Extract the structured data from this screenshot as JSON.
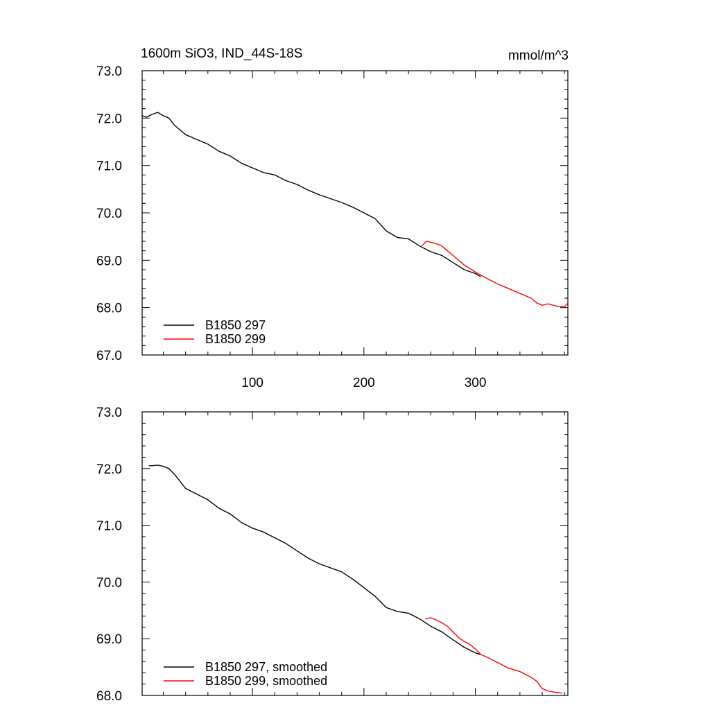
{
  "chart_data": [
    {
      "type": "line",
      "title": "1600m SiO3, IND_44S-18S",
      "units": "mmol/m^3",
      "xlim": [
        1,
        383
      ],
      "ylim": [
        67.0,
        73.0
      ],
      "xticks": [
        100,
        200,
        300
      ],
      "xtick_labels": [
        "100",
        "200",
        "300"
      ],
      "yticks": [
        67.0,
        68.0,
        69.0,
        70.0,
        71.0,
        72.0,
        73.0
      ],
      "ytick_labels": [
        "67.0",
        "68.0",
        "69.0",
        "70.0",
        "71.0",
        "72.0",
        "73.0"
      ],
      "legend_position": "bottom-left",
      "series": [
        {
          "name": "B1850 297",
          "color": "#000000",
          "x": [
            1,
            5,
            10,
            15,
            20,
            25,
            30,
            40,
            50,
            60,
            70,
            80,
            90,
            100,
            110,
            120,
            130,
            140,
            150,
            160,
            170,
            180,
            190,
            200,
            210,
            220,
            230,
            240,
            250,
            260,
            270,
            280,
            290,
            300,
            305
          ],
          "y": [
            72.05,
            72.02,
            72.08,
            72.12,
            72.05,
            72.0,
            71.85,
            71.65,
            71.55,
            71.45,
            71.3,
            71.2,
            71.05,
            70.95,
            70.85,
            70.8,
            70.68,
            70.6,
            70.48,
            70.38,
            70.3,
            70.22,
            70.12,
            70.0,
            69.88,
            69.62,
            69.48,
            69.45,
            69.3,
            69.18,
            69.1,
            68.95,
            68.8,
            68.72,
            68.65
          ]
        },
        {
          "name": "B1850 299",
          "color": "#ff0000",
          "x": [
            252,
            256,
            260,
            265,
            270,
            275,
            280,
            285,
            290,
            300,
            310,
            320,
            330,
            340,
            350,
            355,
            360,
            365,
            370,
            375,
            380,
            383
          ],
          "y": [
            69.3,
            69.4,
            69.38,
            69.35,
            69.3,
            69.2,
            69.1,
            69.0,
            68.9,
            68.75,
            68.62,
            68.5,
            68.4,
            68.3,
            68.2,
            68.1,
            68.05,
            68.08,
            68.05,
            68.02,
            68.02,
            68.1
          ]
        }
      ]
    },
    {
      "type": "line",
      "title": "",
      "xlim": [
        1,
        383
      ],
      "ylim": [
        68.0,
        73.0
      ],
      "yticks": [
        68.0,
        69.0,
        70.0,
        71.0,
        72.0,
        73.0
      ],
      "ytick_labels": [
        "68.0",
        "69.0",
        "70.0",
        "71.0",
        "72.0",
        "73.0"
      ],
      "legend_position": "bottom-left",
      "series": [
        {
          "name": "B1850 297, smoothed",
          "color": "#000000",
          "x": [
            7,
            10,
            15,
            20,
            25,
            30,
            40,
            50,
            60,
            70,
            80,
            90,
            100,
            110,
            120,
            130,
            140,
            150,
            160,
            170,
            180,
            190,
            200,
            210,
            220,
            230,
            240,
            250,
            260,
            270,
            280,
            290,
            300,
            305
          ],
          "y": [
            72.05,
            72.05,
            72.06,
            72.04,
            72.0,
            71.9,
            71.65,
            71.55,
            71.45,
            71.3,
            71.2,
            71.05,
            70.95,
            70.88,
            70.78,
            70.68,
            70.55,
            70.42,
            70.32,
            70.25,
            70.18,
            70.05,
            69.9,
            69.75,
            69.55,
            69.48,
            69.45,
            69.35,
            69.22,
            69.12,
            68.98,
            68.85,
            68.75,
            68.72
          ]
        },
        {
          "name": "B1850 299, smoothed",
          "color": "#ff0000",
          "x": [
            255,
            260,
            265,
            270,
            275,
            280,
            285,
            290,
            295,
            300,
            305,
            310,
            320,
            330,
            340,
            350,
            355,
            360,
            365,
            370,
            375,
            378
          ],
          "y": [
            69.35,
            69.37,
            69.33,
            69.28,
            69.22,
            69.12,
            69.02,
            68.95,
            68.9,
            68.82,
            68.72,
            68.68,
            68.58,
            68.48,
            68.42,
            68.32,
            68.25,
            68.12,
            68.08,
            68.06,
            68.05,
            68.04
          ]
        }
      ]
    }
  ]
}
